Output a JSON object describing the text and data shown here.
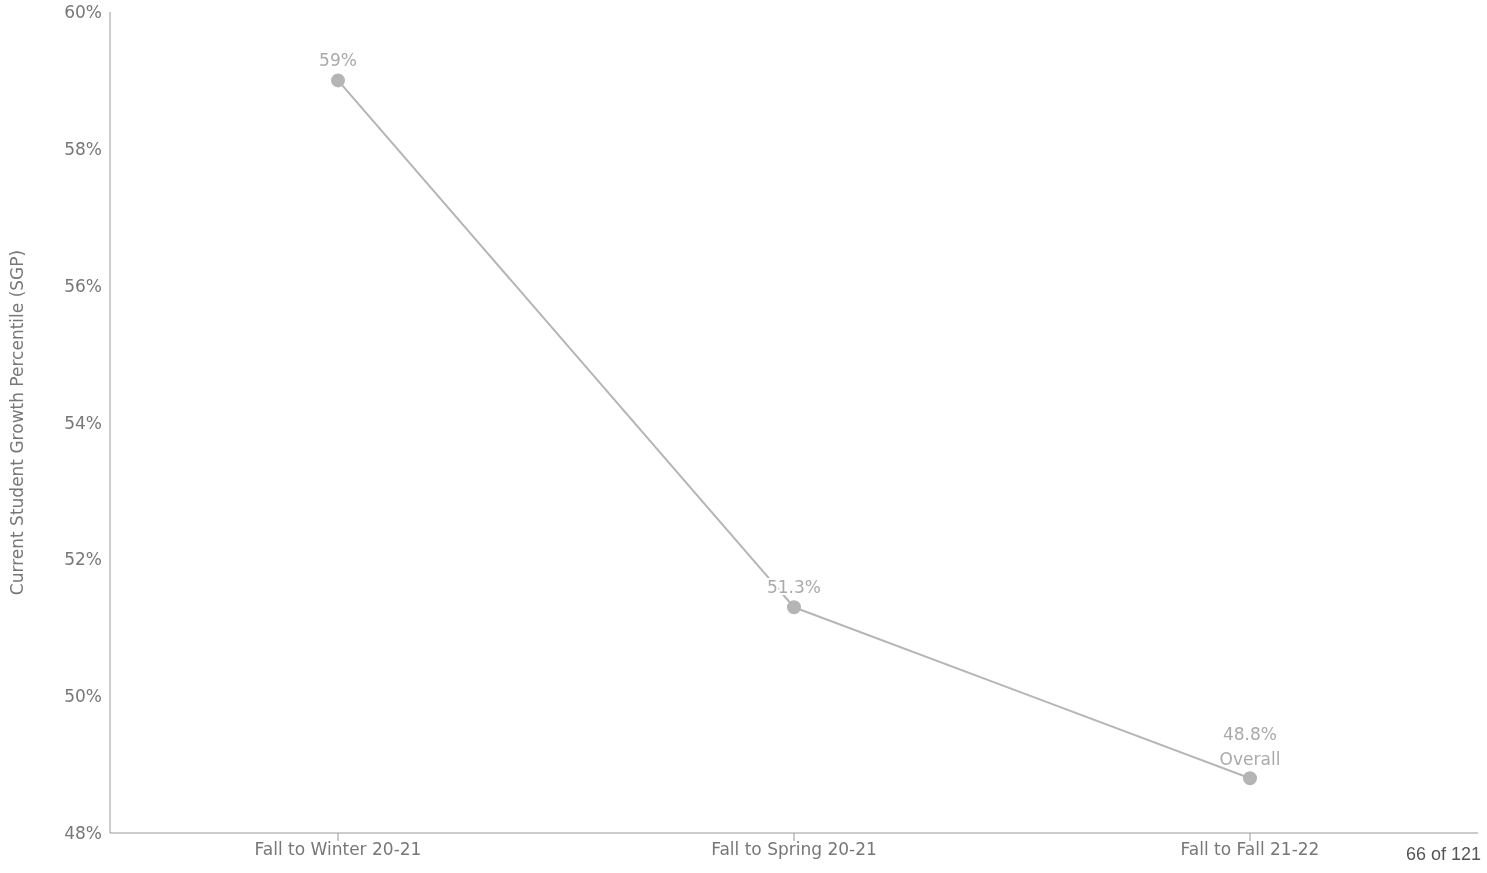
{
  "chart_data": {
    "type": "line",
    "ylabel": "Current Student Growth Percentile (SGP)",
    "categories": [
      "Fall to Winter 20-21",
      "Fall to Spring 20-21",
      "Fall to Fall 21-22"
    ],
    "series": [
      {
        "color": "#b5b5b5",
        "values": [
          59,
          51.3,
          48.8
        ],
        "value_labels": [
          "59%",
          "51.3%",
          "48.8%"
        ]
      }
    ],
    "ylim": [
      48,
      60
    ],
    "yticks": [
      {
        "value": 48,
        "label": "48%"
      },
      {
        "value": 50,
        "label": "50%"
      },
      {
        "value": 52,
        "label": "52%"
      },
      {
        "value": 54,
        "label": "54%"
      },
      {
        "value": 56,
        "label": "56%"
      },
      {
        "value": 58,
        "label": "58%"
      },
      {
        "value": 60,
        "label": "60%"
      }
    ],
    "grid": false,
    "legend": false,
    "marker": "circle",
    "line_style": "solid",
    "annotations": [
      {
        "text": "Overall",
        "x": "Fall to Fall 21-22",
        "y": 48.8
      },
      "66 of 121"
    ]
  }
}
